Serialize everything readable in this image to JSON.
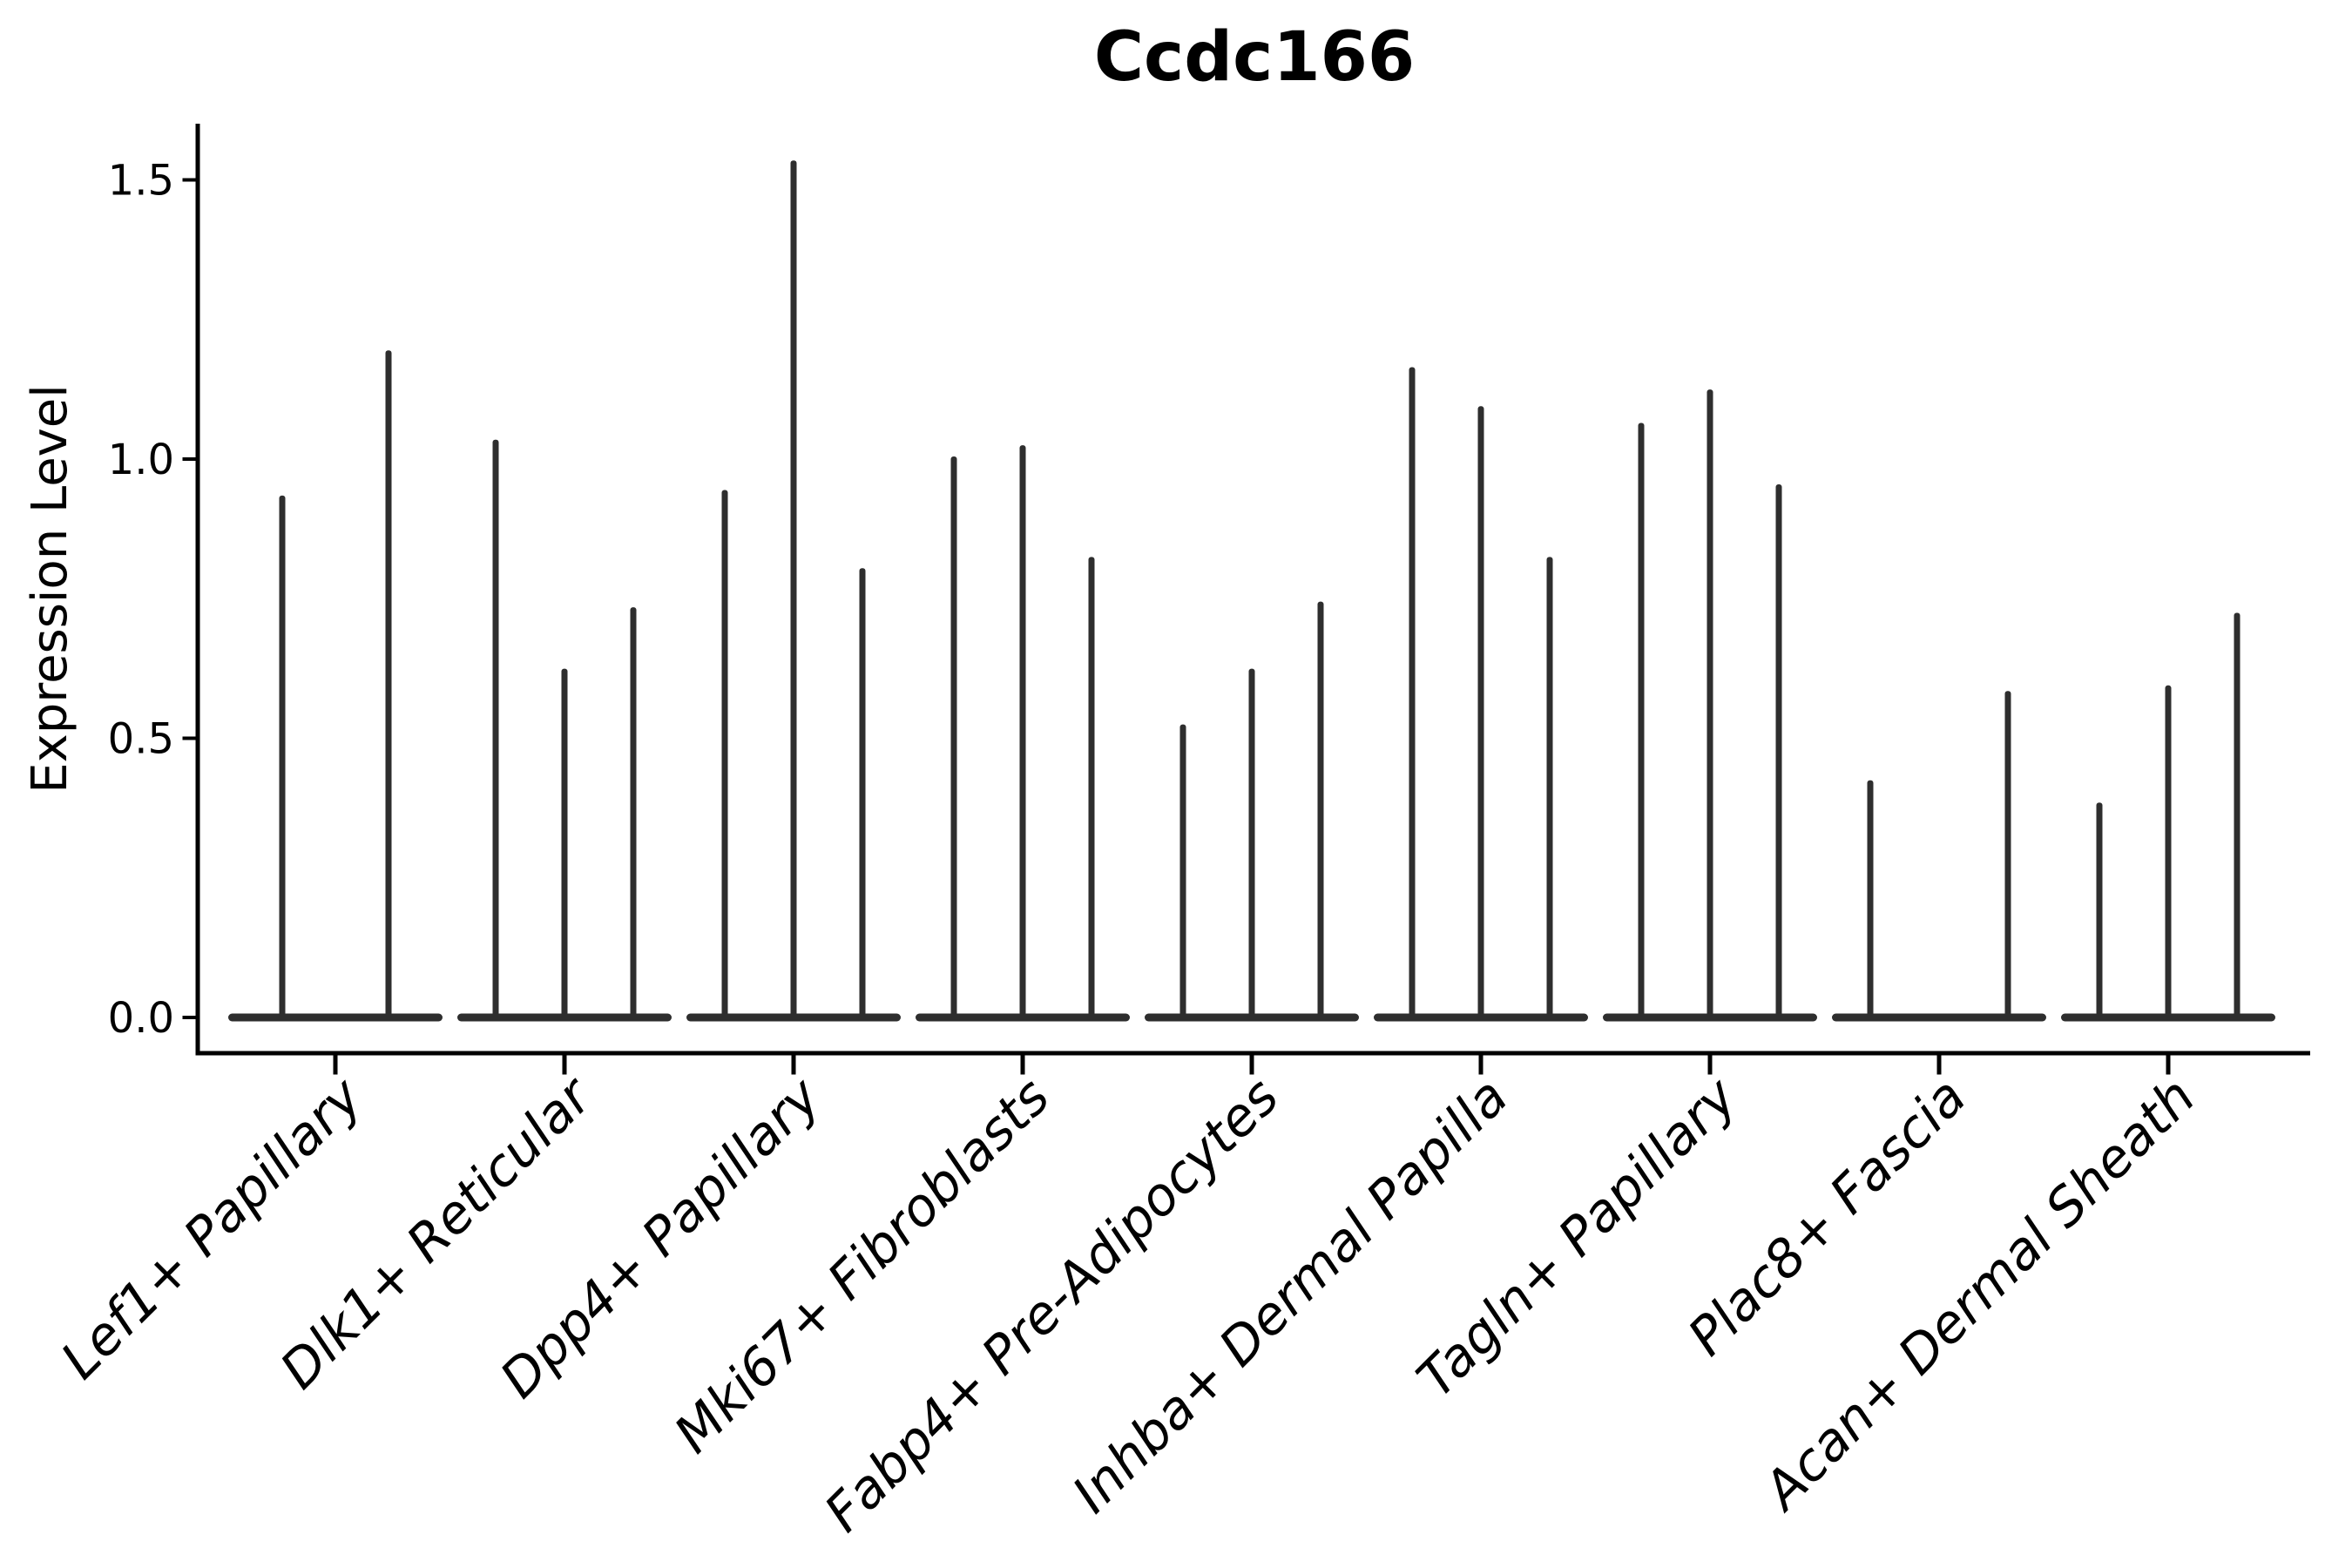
{
  "figure": {
    "background": "#ffffff"
  },
  "chart_data": {
    "type": "violin",
    "title": "Ccdc166",
    "ylabel": "Expression Level",
    "xlabel": "",
    "grid": false,
    "legend": null,
    "colors": {
      "violin": "#2e2e2e",
      "axis": "#000000",
      "text": "#000000"
    },
    "y_axis": {
      "ticks": [
        {
          "value": 0.0,
          "label": "0.0"
        },
        {
          "value": 0.5,
          "label": "0.5"
        },
        {
          "value": 1.0,
          "label": "1.0"
        },
        {
          "value": 1.5,
          "label": "1.5"
        }
      ],
      "range": [
        -0.07,
        1.67
      ]
    },
    "categories": [
      "Lef1+ Papillary",
      "Dlk1+ Reticular",
      "Dpp4+ Papillary",
      "Mki67+ Fibroblasts",
      "Fabp4+ Pre-Adipocytes",
      "Inhba+ Dermal Papilla",
      "Tagln+ Papillary",
      "Plac8+ Fascia",
      "Acan+ Dermal Sheath"
    ],
    "groups": [
      {
        "category": "Lef1+ Papillary",
        "violins": [
          {
            "offset": -61,
            "max": 0.93
          },
          {
            "offset": 61,
            "max": 1.19
          }
        ]
      },
      {
        "category": "Dlk1+ Reticular",
        "violins": [
          {
            "offset": -79,
            "max": 1.03
          },
          {
            "offset": 0,
            "max": 0.62
          },
          {
            "offset": 79,
            "max": 0.73
          }
        ]
      },
      {
        "category": "Dpp4+ Papillary",
        "violins": [
          {
            "offset": -79,
            "max": 0.94
          },
          {
            "offset": 0,
            "max": 1.53
          },
          {
            "offset": 79,
            "max": 0.8
          }
        ]
      },
      {
        "category": "Mki67+ Fibroblasts",
        "violins": [
          {
            "offset": -79,
            "max": 1.0
          },
          {
            "offset": 0,
            "max": 1.02
          },
          {
            "offset": 79,
            "max": 0.82
          }
        ]
      },
      {
        "category": "Fabp4+ Pre-Adipocytes",
        "violins": [
          {
            "offset": -79,
            "max": 0.52
          },
          {
            "offset": 0,
            "max": 0.62
          },
          {
            "offset": 79,
            "max": 0.74
          }
        ]
      },
      {
        "category": "Inhba+ Dermal Papilla",
        "violins": [
          {
            "offset": -79,
            "max": 1.16
          },
          {
            "offset": 0,
            "max": 1.09
          },
          {
            "offset": 79,
            "max": 0.82
          }
        ]
      },
      {
        "category": "Tagln+ Papillary",
        "violins": [
          {
            "offset": -79,
            "max": 1.06
          },
          {
            "offset": 0,
            "max": 1.12
          },
          {
            "offset": 79,
            "max": 0.95
          }
        ]
      },
      {
        "category": "Plac8+ Fascia",
        "violins": [
          {
            "offset": -79,
            "max": 0.42
          },
          {
            "offset": 79,
            "max": 0.58
          }
        ]
      },
      {
        "category": "Acan+ Dermal Sheath",
        "violins": [
          {
            "offset": -79,
            "max": 0.38
          },
          {
            "offset": 0,
            "max": 0.59
          },
          {
            "offset": 79,
            "max": 0.72
          }
        ]
      }
    ]
  }
}
